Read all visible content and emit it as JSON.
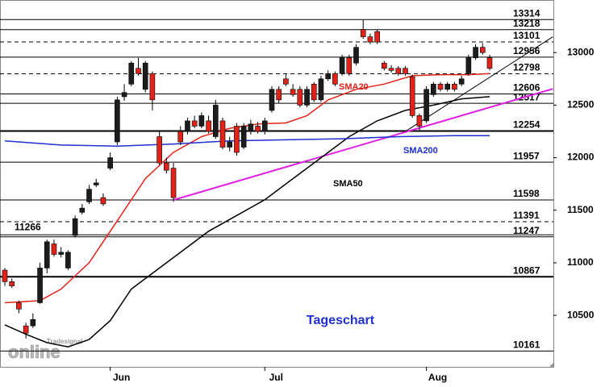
{
  "chart_data": {
    "type": "candlestick",
    "categories": [
      null,
      null,
      null,
      null,
      null,
      null,
      null,
      null,
      null,
      null,
      null,
      null,
      null,
      null,
      null,
      "Jun",
      null,
      null,
      null,
      null,
      null,
      null,
      null,
      null,
      null,
      null,
      null,
      null,
      null,
      null,
      null,
      null,
      null,
      null,
      null,
      null,
      null,
      "Jul",
      null,
      null,
      null,
      null,
      null,
      null,
      null,
      null,
      null,
      null,
      null,
      null,
      null,
      null,
      null,
      null,
      null,
      null,
      null,
      null,
      null,
      null,
      "Aug",
      null,
      null,
      null,
      null,
      null,
      null,
      null,
      null,
      null
    ],
    "open": [
      10930,
      10820,
      10620,
      10400,
      10400,
      10620,
      10950,
      11180,
      11080,
      10950,
      11260,
      11480,
      11580,
      11740,
      11620,
      11900,
      12150,
      12580,
      12700,
      12850,
      12650,
      12800,
      12200,
      11950,
      11900,
      12250,
      12250,
      12350,
      12300,
      12350,
      12200,
      12350,
      12100,
      12300,
      12100,
      12250,
      12300,
      12250,
      12450,
      12650,
      12750,
      12650,
      12650,
      12500,
      12700,
      12550,
      12750,
      12800,
      12800,
      12950,
      12900,
      13220,
      13150,
      13200,
      12900,
      12850,
      12850,
      12850,
      12770,
      12400,
      12350,
      12600,
      12700,
      12650,
      12700,
      12700,
      12800,
      12950,
      13050,
      12950
    ],
    "high": [
      10950,
      10850,
      10640,
      10430,
      10520,
      11000,
      11220,
      11220,
      11150,
      11120,
      11450,
      11560,
      11740,
      11800,
      11660,
      12050,
      12580,
      12700,
      12920,
      12950,
      12920,
      12820,
      12250,
      12000,
      11950,
      12300,
      12380,
      12400,
      12430,
      12400,
      12550,
      12380,
      12200,
      12330,
      12330,
      12360,
      12340,
      12380,
      12680,
      12680,
      12800,
      12700,
      12680,
      12680,
      12720,
      12780,
      12830,
      12820,
      12980,
      12980,
      13080,
      13310,
      13180,
      13220,
      12920,
      12880,
      12870,
      12870,
      12790,
      12420,
      12680,
      12720,
      12720,
      12720,
      12720,
      12780,
      12980,
      13080,
      13090,
      12980
    ],
    "low": [
      10780,
      10760,
      10520,
      10280,
      10380,
      10610,
      10900,
      11060,
      11050,
      10930,
      11240,
      11460,
      11560,
      11720,
      11540,
      11880,
      12120,
      12540,
      12680,
      12780,
      12620,
      12450,
      11930,
      11850,
      11580,
      12120,
      12220,
      12280,
      12280,
      12230,
      12180,
      12080,
      12060,
      12020,
      12080,
      12220,
      12230,
      12220,
      12430,
      12520,
      12680,
      12580,
      12480,
      12480,
      12530,
      12530,
      12730,
      12680,
      12780,
      12780,
      12880,
      13130,
      13080,
      13080,
      12830,
      12810,
      12780,
      12780,
      12380,
      12260,
      12330,
      12580,
      12630,
      12630,
      12630,
      12680,
      12780,
      12930,
      12980,
      12830
    ],
    "close": [
      10820,
      10780,
      10560,
      10330,
      10460,
      10950,
      11200,
      11080,
      11100,
      11100,
      11420,
      11520,
      11700,
      11760,
      11560,
      12000,
      12550,
      12620,
      12900,
      12800,
      12900,
      12550,
      11950,
      11880,
      11620,
      12150,
      12350,
      12300,
      12400,
      12250,
      12500,
      12100,
      12150,
      12050,
      12300,
      12320,
      12250,
      12350,
      12650,
      12550,
      12700,
      12600,
      12500,
      12650,
      12550,
      12750,
      12800,
      12700,
      12950,
      12800,
      13050,
      13150,
      13100,
      13100,
      12850,
      12830,
      12800,
      12800,
      12400,
      12300,
      12650,
      12700,
      12650,
      12700,
      12650,
      12750,
      12950,
      13050,
      13000,
      12850
    ],
    "up_color": "#1c1c1c",
    "down_color": "#e2231a",
    "lines": [
      {
        "name": "SMA20",
        "color": "#e2231a",
        "x": [
          0,
          5,
          8,
          12,
          16,
          20,
          24,
          28,
          32,
          36,
          40,
          43,
          46,
          50,
          54,
          58,
          62,
          66,
          69
        ],
        "values": [
          10620,
          10640,
          10750,
          11000,
          11400,
          11800,
          12050,
          12200,
          12280,
          12320,
          12330,
          12400,
          12550,
          12650,
          12700,
          12780,
          12790,
          12790,
          12800
        ]
      },
      {
        "name": "SMA50",
        "color": "#000000",
        "x": [
          0,
          3,
          6,
          9,
          12,
          15,
          18,
          21,
          25,
          29,
          33,
          37,
          41,
          45,
          49,
          53,
          57,
          61,
          65,
          69
        ],
        "values": [
          10410,
          10320,
          10240,
          10200,
          10270,
          10450,
          10750,
          10900,
          11100,
          11300,
          11450,
          11600,
          11800,
          12000,
          12200,
          12350,
          12450,
          12500,
          12560,
          12580
        ]
      },
      {
        "name": "SMA200",
        "color": "#1f2fd0",
        "x": [
          0,
          8,
          16,
          24,
          32,
          40,
          48,
          56,
          64,
          69
        ],
        "values": [
          12160,
          12120,
          12110,
          12130,
          12160,
          12170,
          12180,
          12200,
          12210,
          12210
        ]
      }
    ],
    "trendlines": [
      {
        "color": "#e020e0",
        "x": [
          24,
          78
        ],
        "values": [
          11598,
          12655
        ]
      },
      {
        "color": "#000000",
        "x": [
          57,
          78
        ],
        "values": [
          12250,
          13150
        ]
      }
    ],
    "levels": [
      {
        "value": 13314,
        "style": "solid"
      },
      {
        "value": 13218,
        "style": "solid"
      },
      {
        "value": 13101,
        "style": "dashed"
      },
      {
        "value": 12956,
        "style": "solid"
      },
      {
        "value": 12798,
        "style": "dashed"
      },
      {
        "value": 12606,
        "style": "solid"
      },
      {
        "value": 12517,
        "style": "solid"
      },
      {
        "value": 12254,
        "style": "bold"
      },
      {
        "value": 11957,
        "style": "solid"
      },
      {
        "value": 11598,
        "style": "solid"
      },
      {
        "value": 11391,
        "style": "dashed"
      },
      {
        "value": 11266,
        "style": "solid",
        "side": "left"
      },
      {
        "value": 11247,
        "style": "solid"
      },
      {
        "value": 10867,
        "style": "bold"
      },
      {
        "value": 10161,
        "style": "solid"
      }
    ],
    "annotation": "Tageschart",
    "logo": [
      "Tradesignal",
      "online"
    ],
    "ylim": [
      10010,
      13500
    ],
    "yticks": [
      10500,
      11000,
      11500,
      12000,
      12500,
      13000
    ]
  }
}
